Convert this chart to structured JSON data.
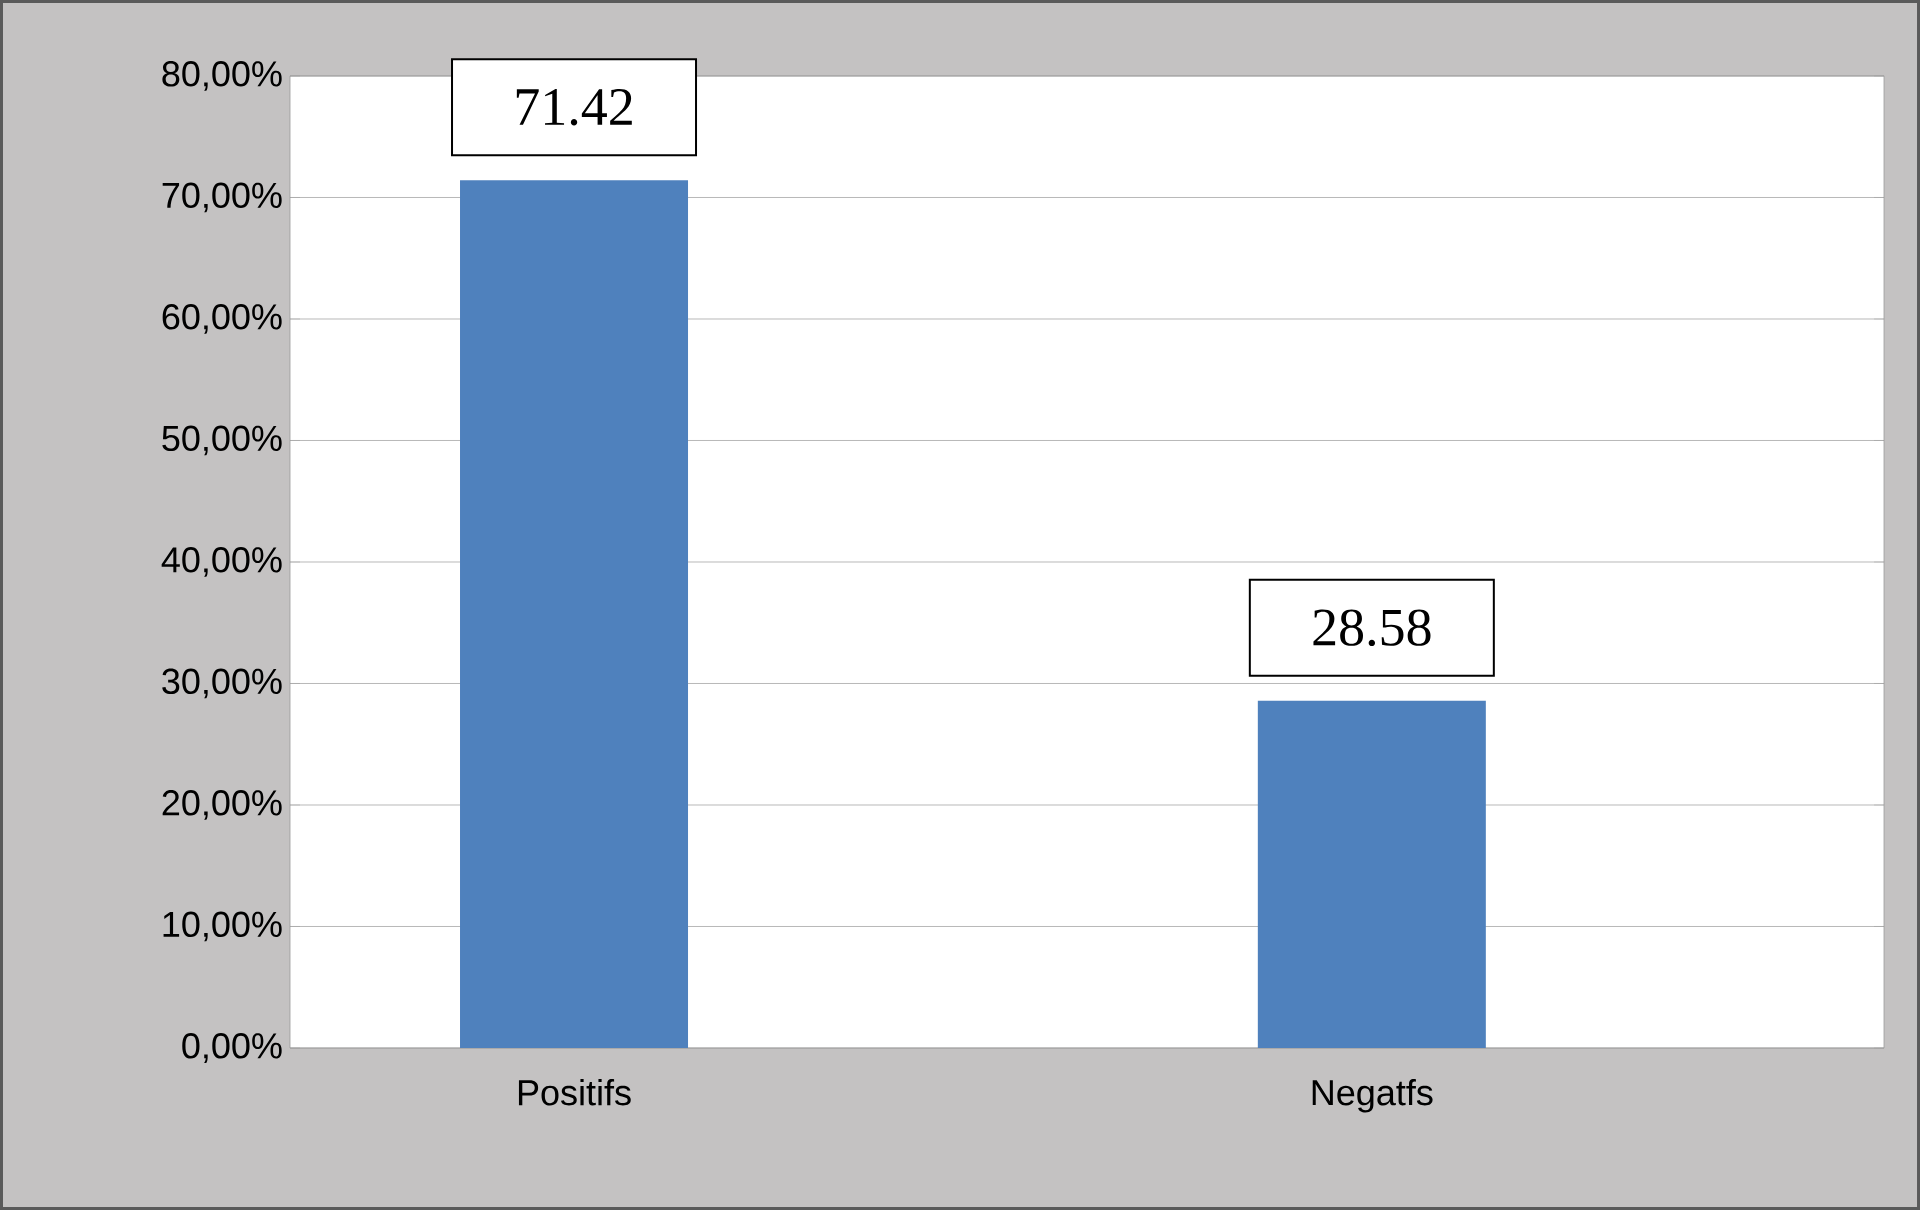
{
  "chart_data": {
    "type": "bar",
    "categories": [
      "Positifs",
      "Negatfs"
    ],
    "values": [
      71.42,
      28.58
    ],
    "color": "#4f81bd",
    "ylim": [
      0,
      80
    ],
    "yticks": [
      {
        "value": 0,
        "label": "0,00%"
      },
      {
        "value": 10,
        "label": "10,00%"
      },
      {
        "value": 20,
        "label": "20,00%"
      },
      {
        "value": 30,
        "label": "30,00%"
      },
      {
        "value": 40,
        "label": "40,00%"
      },
      {
        "value": 50,
        "label": "50,00%"
      },
      {
        "value": 60,
        "label": "60,00%"
      },
      {
        "value": 70,
        "label": "70,00%"
      },
      {
        "value": 80,
        "label": "80,00%"
      }
    ],
    "grid": "y",
    "data_labels": true
  }
}
